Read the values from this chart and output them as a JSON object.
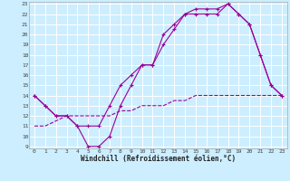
{
  "xlabel": "Windchill (Refroidissement éolien,°C)",
  "bg_color": "#cceeff",
  "grid_color": "#ffffff",
  "line_color": "#990099",
  "line1_x": [
    0,
    1,
    2,
    3,
    4,
    5,
    6,
    7,
    8,
    9,
    10,
    11,
    12,
    13,
    14,
    15,
    16,
    17,
    18,
    19,
    20,
    21,
    22,
    23
  ],
  "line1_y": [
    14,
    13,
    12,
    12,
    11,
    9,
    9,
    10,
    13,
    15,
    17,
    17,
    20,
    21,
    22,
    22,
    22,
    22,
    23,
    22,
    21,
    18,
    15,
    14
  ],
  "line2_x": [
    0,
    1,
    2,
    3,
    4,
    5,
    6,
    7,
    8,
    9,
    10,
    11,
    12,
    13,
    14,
    15,
    16,
    17,
    18,
    19,
    20,
    21,
    22,
    23
  ],
  "line2_y": [
    14,
    13,
    12,
    12,
    11,
    11,
    11,
    13,
    15,
    16,
    17,
    17,
    19,
    20.5,
    22,
    22.5,
    22.5,
    22.5,
    23,
    22,
    21,
    18,
    15,
    14
  ],
  "line3_x": [
    0,
    1,
    2,
    3,
    4,
    5,
    6,
    7,
    8,
    9,
    10,
    11,
    12,
    13,
    14,
    15,
    16,
    17,
    18,
    19,
    20,
    21,
    22,
    23
  ],
  "line3_y": [
    11,
    11,
    11.5,
    12,
    12,
    12,
    12,
    12,
    12.5,
    12.5,
    13,
    13,
    13,
    13.5,
    13.5,
    14,
    14,
    14,
    14,
    14,
    14,
    14,
    14,
    14
  ],
  "ylim": [
    9,
    23
  ],
  "xlim": [
    -0.5,
    23.5
  ],
  "yticks": [
    9,
    10,
    11,
    12,
    13,
    14,
    15,
    16,
    17,
    18,
    19,
    20,
    21,
    22,
    23
  ],
  "xticks": [
    0,
    1,
    2,
    3,
    4,
    5,
    6,
    7,
    8,
    9,
    10,
    11,
    12,
    13,
    14,
    15,
    16,
    17,
    18,
    19,
    20,
    21,
    22,
    23
  ],
  "markersize": 3,
  "linewidth": 0.8,
  "tick_fontsize": 4.5,
  "xlabel_fontsize": 5.5
}
